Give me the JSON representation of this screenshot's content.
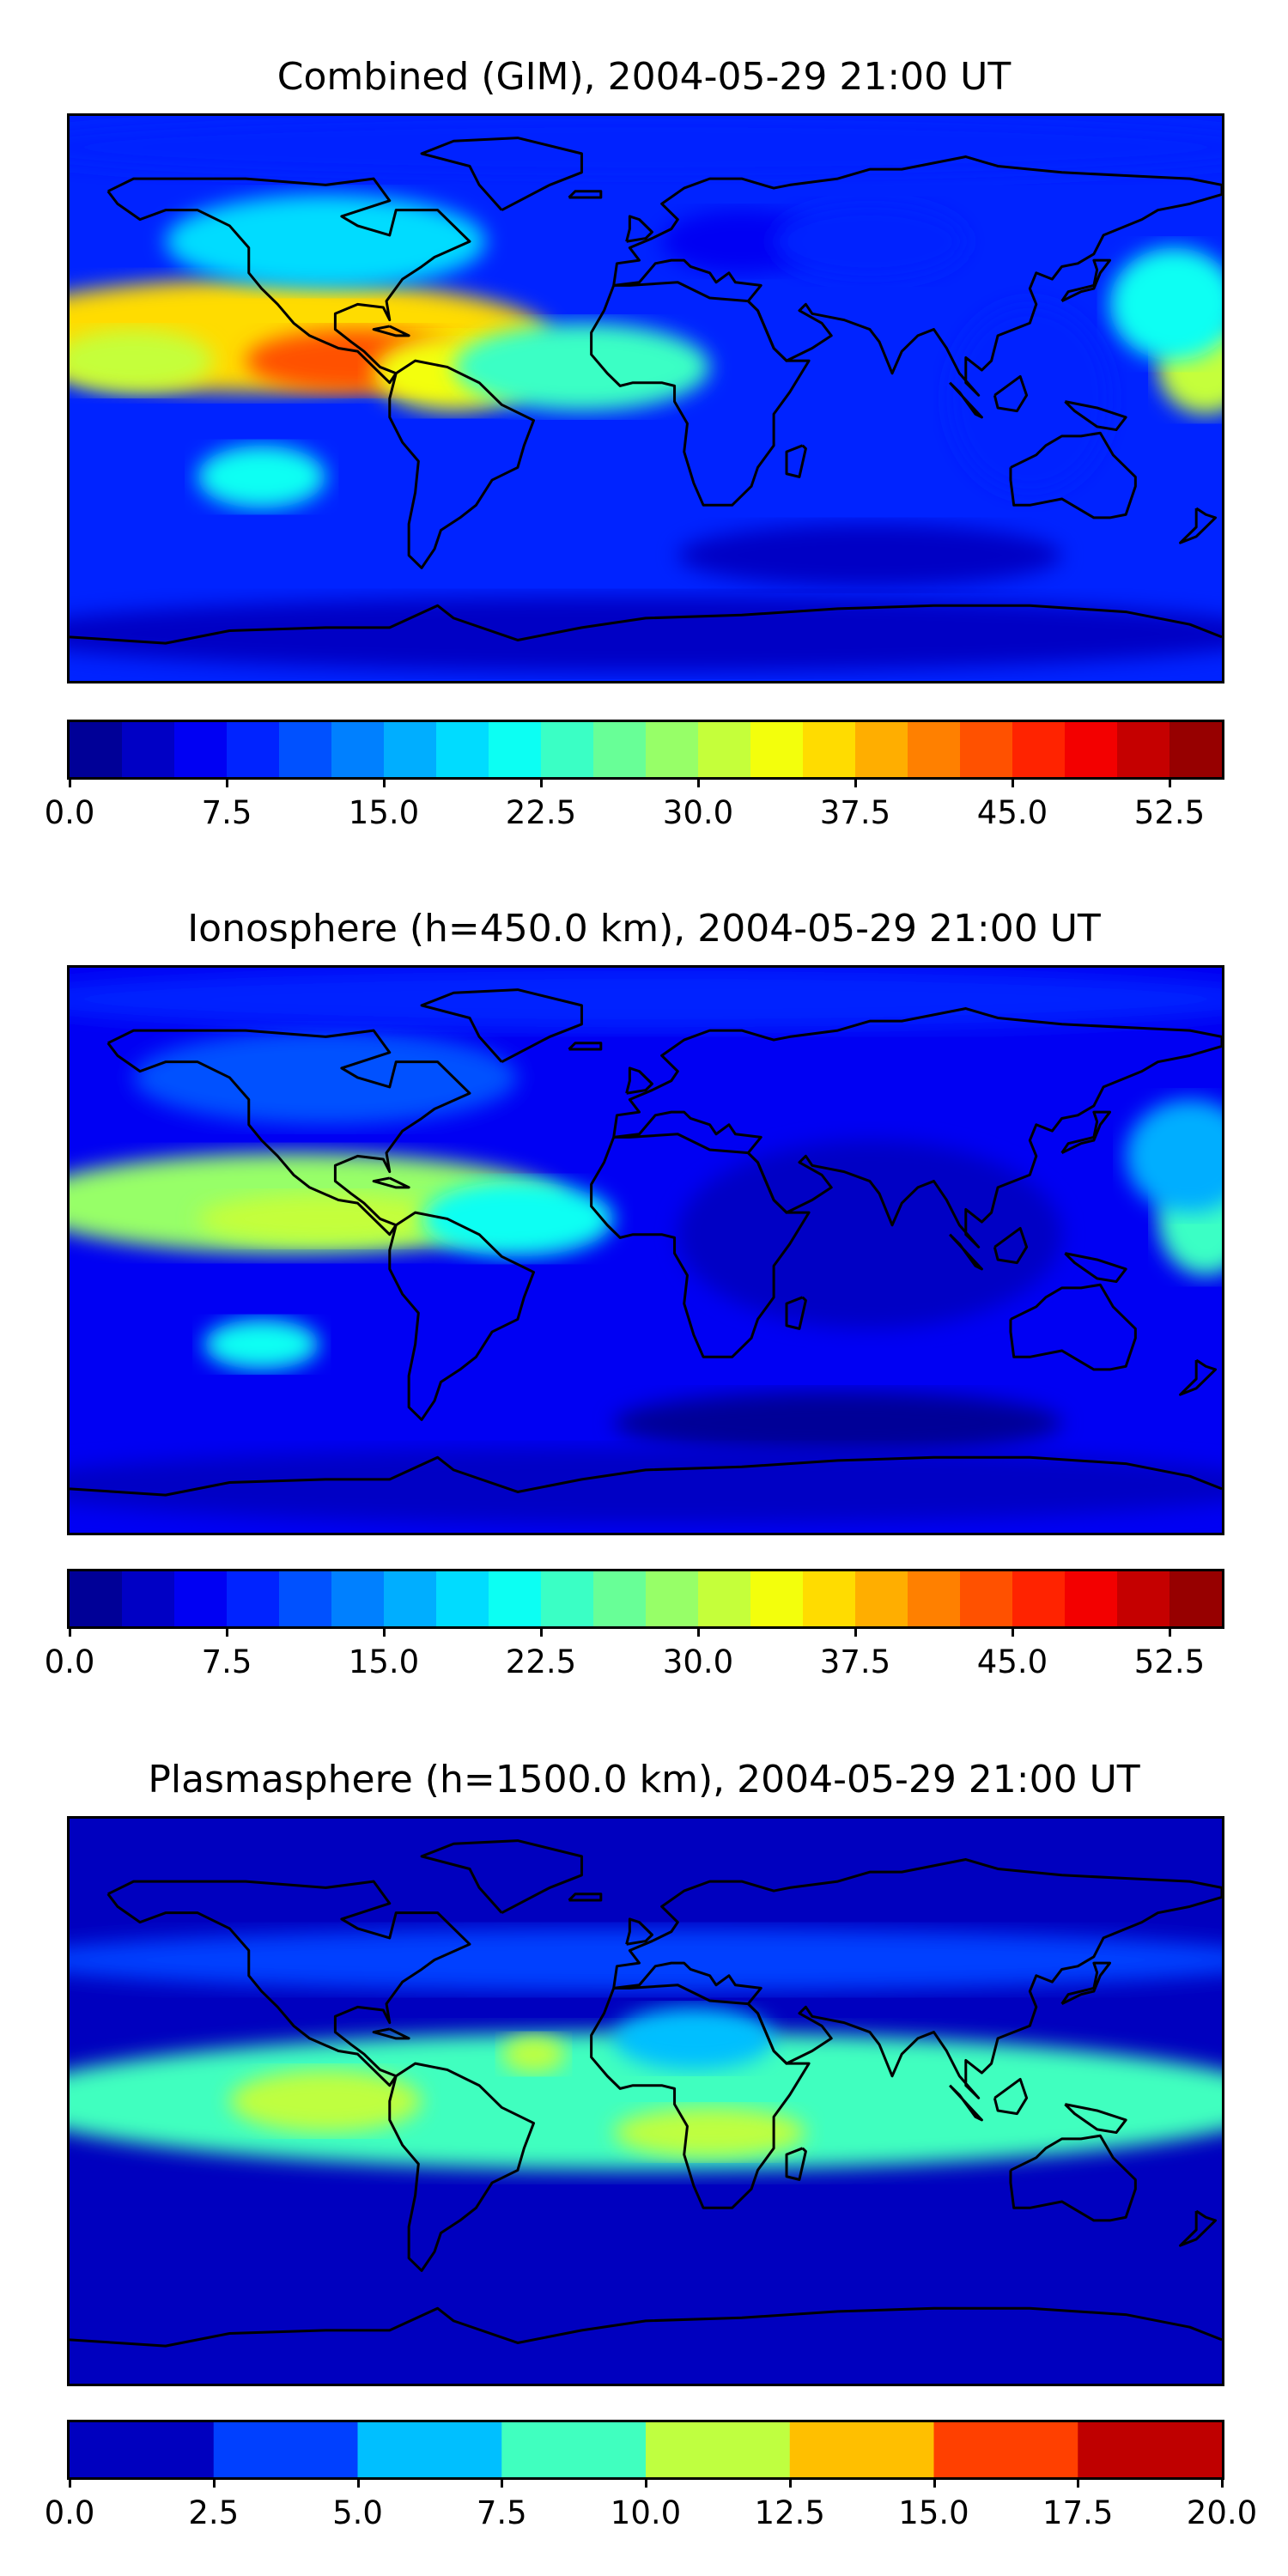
{
  "chart_data": [
    {
      "type": "heatmap",
      "title": "Combined (GIM), 2004-05-29 21:00 UT",
      "xlim": [
        -180,
        180
      ],
      "ylim": [
        -90,
        90
      ],
      "levels": [
        0,
        2.5,
        5,
        7.5,
        10,
        12.5,
        15,
        17.5,
        20,
        22.5,
        25,
        27.5,
        30,
        32.5,
        35,
        37.5,
        40,
        42.5,
        45,
        47.5,
        50,
        52.5,
        55
      ],
      "colorbar_ticks": [
        "0.0",
        "7.5",
        "15.0",
        "22.5",
        "30.0",
        "37.5",
        "45.0",
        "52.5"
      ],
      "tick_values": [
        0,
        7.5,
        15,
        22.5,
        30,
        37.5,
        45,
        52.5
      ],
      "vmin": 0,
      "vmax": 55,
      "background_value": 8,
      "features": [
        {
          "lon": -120,
          "lat": 20,
          "value": 37,
          "rx": 90,
          "ry": 18
        },
        {
          "lon": -90,
          "lat": 12,
          "value": 44,
          "rx": 35,
          "ry": 10
        },
        {
          "lon": -160,
          "lat": 12,
          "value": 32,
          "rx": 25,
          "ry": 10
        },
        {
          "lon": -60,
          "lat": 8,
          "value": 33,
          "rx": 25,
          "ry": 12
        },
        {
          "lon": -20,
          "lat": 10,
          "value": 24,
          "rx": 40,
          "ry": 14
        },
        {
          "lon": 175,
          "lat": 10,
          "value": 30,
          "rx": 15,
          "ry": 15
        },
        {
          "lon": 165,
          "lat": 30,
          "value": 22,
          "rx": 20,
          "ry": 18
        },
        {
          "lon": -100,
          "lat": 50,
          "value": 18,
          "rx": 50,
          "ry": 15
        },
        {
          "lon": -120,
          "lat": -25,
          "value": 22,
          "rx": 20,
          "ry": 10
        },
        {
          "lon": 70,
          "lat": -50,
          "value": 3,
          "rx": 60,
          "ry": 10
        },
        {
          "lon": 30,
          "lat": 50,
          "value": 6,
          "rx": 25,
          "ry": 10
        },
        {
          "lon": 70,
          "lat": 50,
          "value": 8,
          "rx": 30,
          "ry": 12
        },
        {
          "lon": 120,
          "lat": 0,
          "value": 9,
          "rx": 25,
          "ry": 30
        },
        {
          "lon": 0,
          "lat": -75,
          "value": 4,
          "rx": 200,
          "ry": 12
        },
        {
          "lon": 0,
          "lat": 80,
          "value": 9,
          "rx": 200,
          "ry": 10
        }
      ]
    },
    {
      "type": "heatmap",
      "title": "Ionosphere  (h=450.0 km), 2004-05-29 21:00 UT",
      "xlim": [
        -180,
        180
      ],
      "ylim": [
        -90,
        90
      ],
      "levels": [
        0,
        2.5,
        5,
        7.5,
        10,
        12.5,
        15,
        17.5,
        20,
        22.5,
        25,
        27.5,
        30,
        32.5,
        35,
        37.5,
        40,
        42.5,
        45,
        47.5,
        50,
        52.5,
        55
      ],
      "colorbar_ticks": [
        "0.0",
        "7.5",
        "15.0",
        "22.5",
        "30.0",
        "37.5",
        "45.0",
        "52.5"
      ],
      "tick_values": [
        0,
        7.5,
        15,
        22.5,
        30,
        37.5,
        45,
        52.5
      ],
      "vmin": 0,
      "vmax": 55,
      "background_value": 6,
      "features": [
        {
          "lon": -110,
          "lat": 15,
          "value": 28,
          "rx": 85,
          "ry": 16
        },
        {
          "lon": -100,
          "lat": 10,
          "value": 31,
          "rx": 40,
          "ry": 8
        },
        {
          "lon": -40,
          "lat": 10,
          "value": 22,
          "rx": 30,
          "ry": 12
        },
        {
          "lon": 175,
          "lat": 10,
          "value": 24,
          "rx": 15,
          "ry": 18
        },
        {
          "lon": 170,
          "lat": 30,
          "value": 16,
          "rx": 20,
          "ry": 18
        },
        {
          "lon": -100,
          "lat": 55,
          "value": 12,
          "rx": 60,
          "ry": 15
        },
        {
          "lon": -120,
          "lat": -30,
          "value": 20,
          "rx": 18,
          "ry": 8
        },
        {
          "lon": 70,
          "lat": 5,
          "value": 3,
          "rx": 60,
          "ry": 30
        },
        {
          "lon": 60,
          "lat": -55,
          "value": 2,
          "rx": 70,
          "ry": 10
        },
        {
          "lon": 0,
          "lat": -75,
          "value": 3,
          "rx": 200,
          "ry": 12
        },
        {
          "lon": 0,
          "lat": 80,
          "value": 8,
          "rx": 200,
          "ry": 10
        }
      ]
    },
    {
      "type": "heatmap",
      "title": "Plasmasphere (h=1500.0 km), 2004-05-29 21:00 UT",
      "xlim": [
        -180,
        180
      ],
      "ylim": [
        -90,
        90
      ],
      "levels": [
        0,
        2.5,
        5,
        7.5,
        10,
        12.5,
        15,
        17.5,
        20
      ],
      "colorbar_ticks": [
        "0.0",
        "2.5",
        "5.0",
        "7.5",
        "10.0",
        "12.5",
        "15.0",
        "17.5",
        "20.0"
      ],
      "tick_values": [
        0,
        2.5,
        5,
        7.5,
        10,
        12.5,
        15,
        17.5,
        20
      ],
      "vmin": 0,
      "vmax": 20,
      "background_value": 1.5,
      "features": [
        {
          "lon": 0,
          "lat": 0,
          "value": 9,
          "rx": 200,
          "ry": 22
        },
        {
          "lon": -100,
          "lat": 0,
          "value": 10.5,
          "rx": 30,
          "ry": 10
        },
        {
          "lon": 20,
          "lat": -10,
          "value": 10.5,
          "rx": 30,
          "ry": 8
        },
        {
          "lon": -35,
          "lat": 15,
          "value": 10.5,
          "rx": 10,
          "ry": 6
        },
        {
          "lon": 15,
          "lat": 20,
          "value": 6.5,
          "rx": 25,
          "ry": 10
        },
        {
          "lon": 0,
          "lat": 45,
          "value": 4,
          "rx": 200,
          "ry": 10
        }
      ]
    }
  ]
}
